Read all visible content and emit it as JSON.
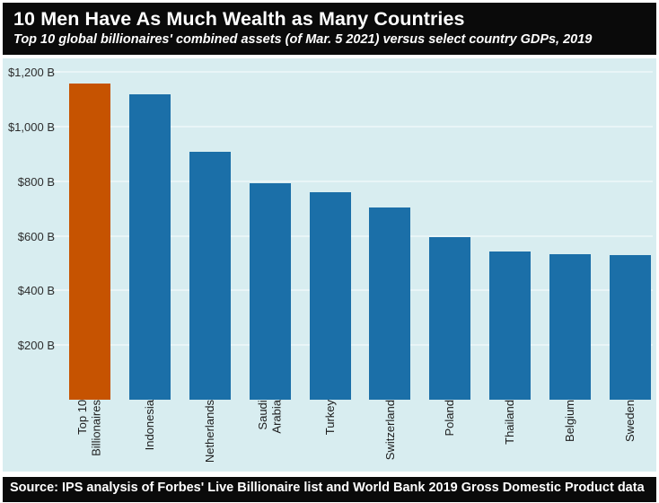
{
  "header": {
    "title": "10 Men Have As Much Wealth as Many Countries",
    "subtitle": "Top 10 global billionaires' combined assets (of Mar. 5 2021) versus select country GDPs, 2019"
  },
  "footer": {
    "source": "Source: IPS analysis of Forbes' Live Billionaire list and World Bank 2019 Gross Domestic Product data"
  },
  "chart_data": {
    "type": "bar",
    "title": "10 Men Have As Much Wealth as Many Countries",
    "subtitle": "Top 10 global billionaires' combined assets (of Mar. 5 2021) versus select country GDPs, 2019",
    "categories": [
      "Top 10\nBillionaires",
      "Indonesia",
      "Netherlands",
      "Saudi\nArabia",
      "Turkey",
      "Switzerland",
      "Poland",
      "Thailand",
      "Belgium",
      "Sweden"
    ],
    "values": [
      1157,
      1119,
      909,
      793,
      761,
      703,
      596,
      544,
      533,
      531
    ],
    "unit": "billion USD",
    "xlabel": "",
    "ylabel": "",
    "ylim": [
      0,
      1224
    ],
    "yticks": [
      200,
      400,
      600,
      800,
      1000,
      1200
    ],
    "ytick_labels": [
      "$200 B",
      "$400 B",
      "$600 B",
      "$800 B",
      "$1,000 B",
      "$1,200 B"
    ],
    "grid": true,
    "legend": "none",
    "highlight_index": 0,
    "colors": {
      "highlight": "#c65301",
      "default": "#1b6fa8",
      "plot_background": "#d8edf0",
      "gridline": "#e9f5f7",
      "header_background": "#0a0a0a",
      "header_text": "#ffffff",
      "tick_text": "#2d2d2d"
    }
  }
}
